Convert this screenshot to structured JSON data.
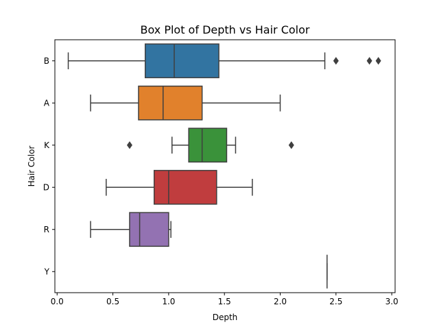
{
  "chart_data": {
    "type": "box",
    "orientation": "horizontal",
    "title": "Box Plot of Depth vs Hair Color",
    "xlabel": "Depth",
    "ylabel": "Hair Color",
    "xlim": [
      -0.02,
      3.03
    ],
    "x_ticks": [
      0.0,
      0.5,
      1.0,
      1.5,
      2.0,
      2.5,
      3.0
    ],
    "x_tick_labels": [
      "0.0",
      "0.5",
      "1.0",
      "1.5",
      "2.0",
      "2.5",
      "3.0"
    ],
    "grid": false,
    "categories": [
      "B",
      "A",
      "K",
      "D",
      "R",
      "Y"
    ],
    "boxes": [
      {
        "category": "B",
        "color": "#3274a1",
        "whisker_low": 0.1,
        "q1": 0.79,
        "median": 1.05,
        "q3": 1.45,
        "whisker_high": 2.4,
        "outliers": [
          2.5,
          2.8,
          2.88
        ]
      },
      {
        "category": "A",
        "color": "#e1812c",
        "whisker_low": 0.3,
        "q1": 0.73,
        "median": 0.95,
        "q3": 1.3,
        "whisker_high": 2.0,
        "outliers": []
      },
      {
        "category": "K",
        "color": "#3a923a",
        "whisker_low": 1.03,
        "q1": 1.18,
        "median": 1.3,
        "q3": 1.52,
        "whisker_high": 1.6,
        "outliers": [
          0.65,
          2.1
        ]
      },
      {
        "category": "D",
        "color": "#c03d3e",
        "whisker_low": 0.44,
        "q1": 0.87,
        "median": 1.0,
        "q3": 1.43,
        "whisker_high": 1.75,
        "outliers": []
      },
      {
        "category": "R",
        "color": "#9372b2",
        "whisker_low": 0.3,
        "q1": 0.65,
        "median": 0.74,
        "q3": 1.0,
        "whisker_high": 1.02,
        "outliers": []
      },
      {
        "category": "Y",
        "color": "#845b53",
        "whisker_low": 2.42,
        "q1": 2.42,
        "median": 2.42,
        "q3": 2.42,
        "whisker_high": 2.42,
        "outliers": []
      }
    ]
  }
}
